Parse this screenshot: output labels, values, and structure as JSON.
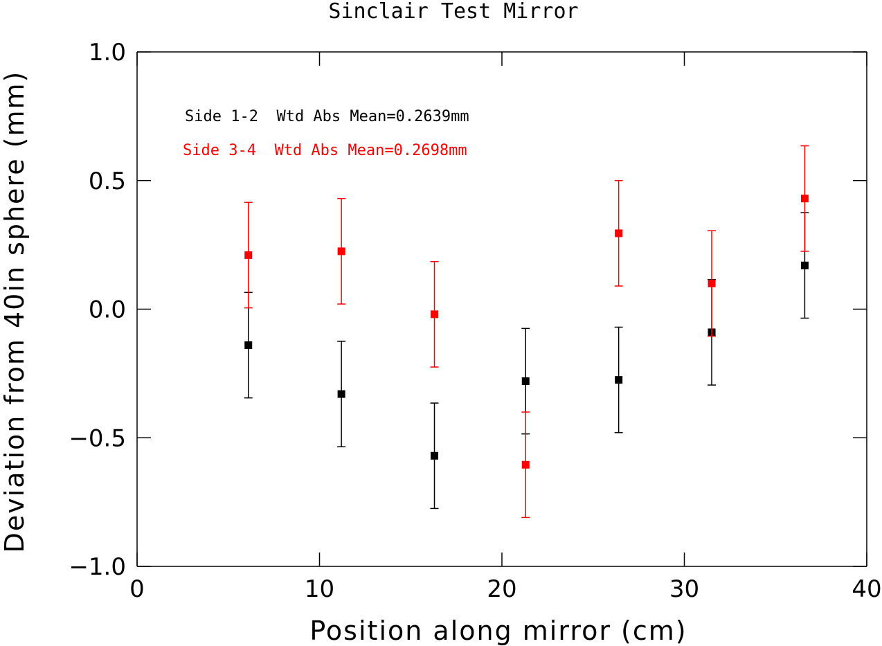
{
  "chart_data": {
    "type": "scatter",
    "title": "Sinclair Test Mirror",
    "xlabel": "Position along mirror (cm)",
    "ylabel": "Deviation from 40in sphere (mm)",
    "xlim": [
      0,
      40
    ],
    "ylim": [
      -1.0,
      1.0
    ],
    "xticks": [
      0,
      10,
      20,
      30,
      40
    ],
    "xtick_labels": [
      "0",
      "10",
      "20",
      "30",
      "40"
    ],
    "yticks": [
      -1.0,
      -0.5,
      0.0,
      0.5,
      1.0
    ],
    "ytick_labels": [
      "−1.0",
      "−0.5",
      "0.0",
      "0.5",
      "1.0"
    ],
    "grid": false,
    "legend_placement": "top-left",
    "series": [
      {
        "label": "Side 1-2  Wtd Abs Mean=0.2639mm",
        "color": "#000000",
        "x": [
          6.1,
          11.2,
          16.3,
          21.3,
          26.4,
          31.5,
          36.6
        ],
        "y": [
          -0.14,
          -0.33,
          -0.57,
          -0.28,
          -0.275,
          -0.09,
          0.17
        ],
        "err": [
          0.205,
          0.205,
          0.205,
          0.205,
          0.205,
          0.205,
          0.205
        ]
      },
      {
        "label": "Side 3-4  Wtd Abs Mean=0.2698mm",
        "color": "#ff0000",
        "x": [
          6.1,
          11.2,
          16.3,
          21.3,
          26.4,
          31.5,
          36.6
        ],
        "y": [
          0.21,
          0.225,
          -0.02,
          -0.605,
          0.295,
          0.1,
          0.43
        ],
        "err": [
          0.205,
          0.205,
          0.205,
          0.205,
          0.205,
          0.205,
          0.205
        ]
      }
    ]
  }
}
